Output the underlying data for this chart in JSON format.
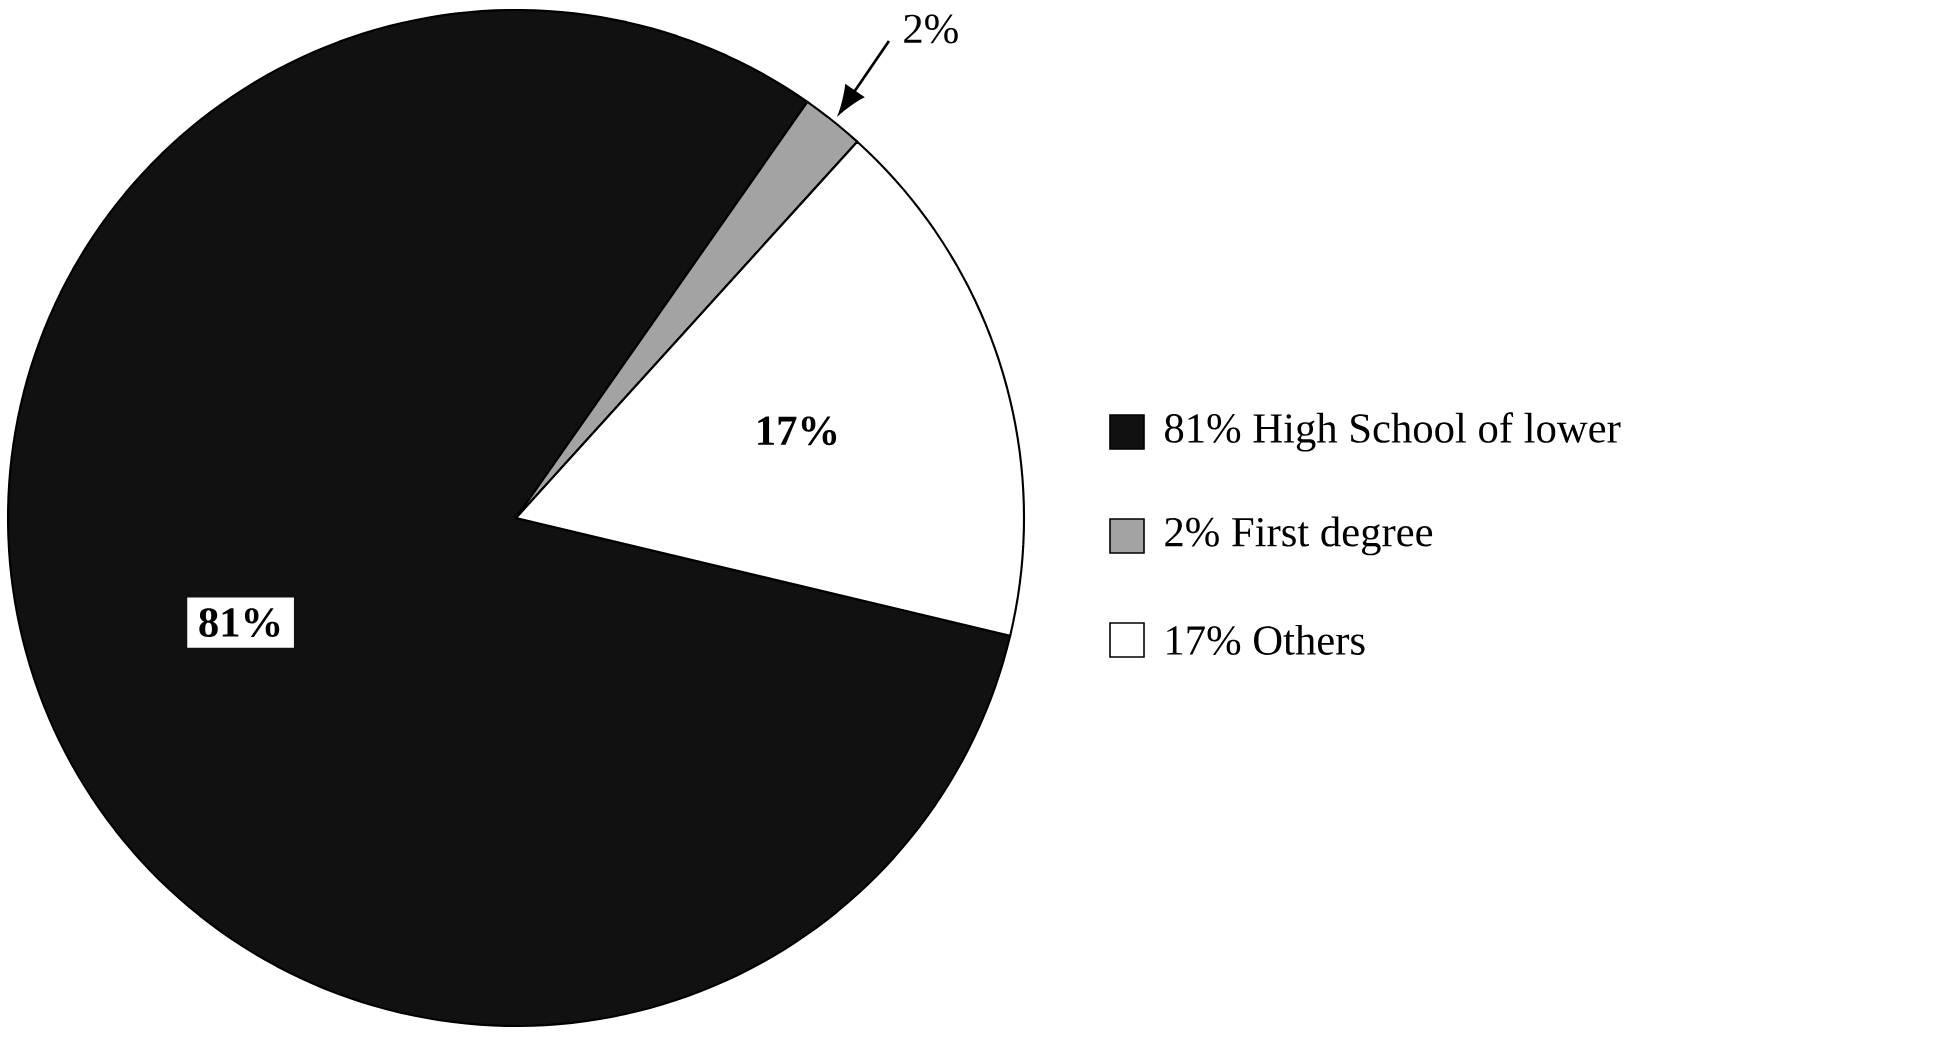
{
  "chart_data": {
    "type": "pie",
    "categories": [
      "81% High School of lower",
      "2% First degree",
      "17% Others"
    ],
    "values": [
      81,
      2,
      17
    ],
    "colors": [
      "#111111",
      "#a3a3a3",
      "#ffffff"
    ],
    "value_labels": [
      "81%",
      "2%",
      "17%"
    ],
    "legend": "right"
  }
}
